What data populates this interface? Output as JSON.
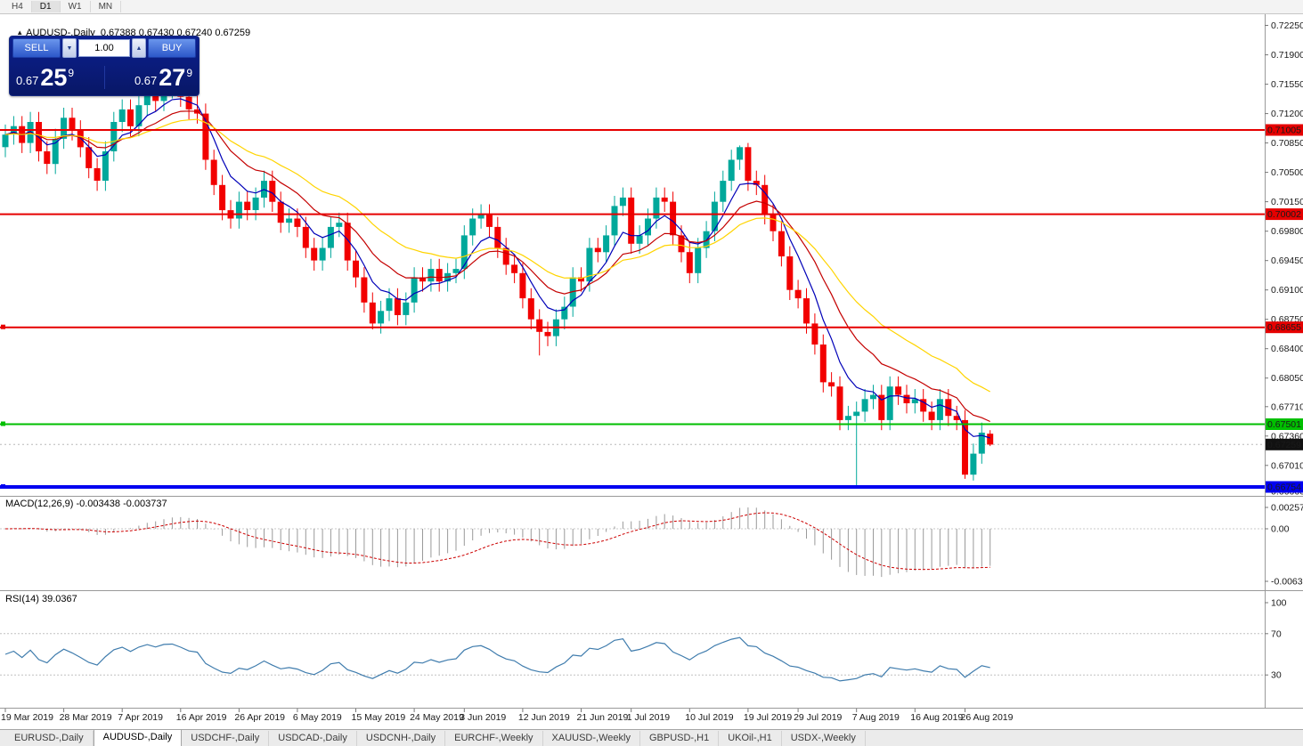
{
  "toolbar": {
    "timeframes": [
      "H4",
      "D1",
      "W1",
      "MN"
    ],
    "active": "D1"
  },
  "chart_header": {
    "marker": "▲",
    "title": "AUDUSD-,Daily  0.67388 0.67430 0.67240 0.67259"
  },
  "trade_panel": {
    "sell_label": "SELL",
    "buy_label": "BUY",
    "volume": "1.00",
    "icons": {
      "down": "▼",
      "up": "▲"
    },
    "sell_price": {
      "base": "0.67",
      "pips": "25",
      "sup": "9"
    },
    "buy_price": {
      "base": "0.67",
      "pips": "27",
      "sup": "9"
    }
  },
  "bottom_tabs": {
    "active_index": 1,
    "items": [
      "EURUSD-,Daily",
      "AUDUSD-,Daily",
      "USDCHF-,Daily",
      "USDCAD-,Daily",
      "USDCNH-,Daily",
      "EURCHF-,Weekly",
      "XAUUSD-,Weekly",
      "GBPUSD-,H1",
      "UKOil-,H1",
      "USDX-,Weekly"
    ]
  },
  "chart_data": {
    "type": "candlestick",
    "symbol": "AUDUSD",
    "timeframe": "Daily",
    "ohlc_display": {
      "open": 0.67388,
      "high": 0.6743,
      "low": 0.6724,
      "close": 0.67259
    },
    "bull_color": "#00a89b",
    "bear_color": "#f20000",
    "moving_averages": [
      {
        "period": 6,
        "color": "#0000b8"
      },
      {
        "period": 13,
        "color": "#c40000"
      },
      {
        "period": 24,
        "color": "#ffd400"
      }
    ],
    "levels": [
      {
        "label": "0.71005",
        "value": 0.71005,
        "color": "#e60000",
        "width": 2,
        "marker": false
      },
      {
        "label": "0.70002",
        "value": 0.70002,
        "color": "#e60000",
        "width": 2,
        "marker": false
      },
      {
        "label": "0.68655",
        "value": 0.68655,
        "color": "#e60000",
        "width": 2,
        "marker": true
      },
      {
        "label": "0.67501",
        "value": 0.67501,
        "color": "#00bf00",
        "width": 2,
        "marker": true
      },
      {
        "label": "0.66754",
        "value": 0.66754,
        "color": "#0000f0",
        "width": 4,
        "marker": true
      }
    ],
    "current_price": {
      "label": "0.67259",
      "value": 0.67259
    },
    "price_axis_labels": [
      "0.72250",
      "0.71900",
      "0.71550",
      "0.71200",
      "0.70850",
      "0.70500",
      "0.70150",
      "0.69800",
      "0.69450",
      "0.69100",
      "0.68750",
      "0.68400",
      "0.68050",
      "0.67710",
      "0.67360",
      "0.67010",
      "0.66660"
    ],
    "indicators": {
      "macd": {
        "title": "MACD(12,26,9) -0.003438 -0.003737",
        "values": [
          -0.003438,
          -0.003737
        ],
        "axis": [
          {
            "label": "0.002574",
            "value": 0.002574
          },
          {
            "label": "0.00",
            "value": 0
          },
          {
            "label": "-0.006326",
            "value": -0.006326
          }
        ]
      },
      "rsi": {
        "title": "RSI(14) 39.0367",
        "value": 39.0367,
        "axis": [
          {
            "label": "100",
            "value": 100
          },
          {
            "label": "70",
            "value": 70
          },
          {
            "label": "30",
            "value": 30
          }
        ]
      }
    },
    "x_axis": [
      {
        "label": "19 Mar 2019",
        "i": 0
      },
      {
        "label": "28 Mar 2019",
        "i": 7
      },
      {
        "label": "7 Apr 2019",
        "i": 14
      },
      {
        "label": "16 Apr 2019",
        "i": 21
      },
      {
        "label": "26 Apr 2019",
        "i": 28
      },
      {
        "label": "6 May 2019",
        "i": 35
      },
      {
        "label": "15 May 2019",
        "i": 42
      },
      {
        "label": "24 May 2019",
        "i": 49
      },
      {
        "label": "3 Jun 2019",
        "i": 55
      },
      {
        "label": "12 Jun 2019",
        "i": 62
      },
      {
        "label": "21 Jun 2019",
        "i": 69
      },
      {
        "label": "1 Jul 2019",
        "i": 75
      },
      {
        "label": "10 Jul 2019",
        "i": 82
      },
      {
        "label": "19 Jul 2019",
        "i": 89
      },
      {
        "label": "29 Jul 2019",
        "i": 95
      },
      {
        "label": "7 Aug 2019",
        "i": 102
      },
      {
        "label": "16 Aug 2019",
        "i": 109
      },
      {
        "label": "26 Aug 2019",
        "i": 115
      }
    ],
    "candles": [
      [
        0.708,
        0.7107,
        0.7068,
        0.7095
      ],
      [
        0.7095,
        0.7117,
        0.7083,
        0.7105
      ],
      [
        0.7105,
        0.7117,
        0.7073,
        0.7085
      ],
      [
        0.7085,
        0.7122,
        0.7073,
        0.711
      ],
      [
        0.711,
        0.7122,
        0.7063,
        0.7075
      ],
      [
        0.7075,
        0.7087,
        0.7048,
        0.706
      ],
      [
        0.706,
        0.7102,
        0.7048,
        0.709
      ],
      [
        0.709,
        0.7127,
        0.7078,
        0.7115
      ],
      [
        0.7115,
        0.7127,
        0.7088,
        0.71
      ],
      [
        0.71,
        0.7112,
        0.7068,
        0.708
      ],
      [
        0.708,
        0.7092,
        0.7043,
        0.7055
      ],
      [
        0.7055,
        0.7067,
        0.7028,
        0.704
      ],
      [
        0.704,
        0.7087,
        0.7028,
        0.7075
      ],
      [
        0.7075,
        0.7122,
        0.7063,
        0.711
      ],
      [
        0.711,
        0.7137,
        0.7098,
        0.7125
      ],
      [
        0.7125,
        0.7137,
        0.7093,
        0.7105
      ],
      [
        0.7105,
        0.7142,
        0.7093,
        0.713
      ],
      [
        0.713,
        0.7157,
        0.7118,
        0.7145
      ],
      [
        0.7145,
        0.7157,
        0.7123,
        0.7135
      ],
      [
        0.7135,
        0.7162,
        0.7123,
        0.715
      ],
      [
        0.715,
        0.716,
        0.7138,
        0.7152
      ],
      [
        0.7152,
        0.7158,
        0.7128,
        0.714
      ],
      [
        0.714,
        0.7152,
        0.7113,
        0.7125
      ],
      [
        0.7125,
        0.7158,
        0.7108,
        0.712
      ],
      [
        0.712,
        0.7132,
        0.7053,
        0.7065
      ],
      [
        0.7065,
        0.7077,
        0.7023,
        0.7035
      ],
      [
        0.7035,
        0.7047,
        0.6993,
        0.7005
      ],
      [
        0.7005,
        0.7017,
        0.6983,
        0.6995
      ],
      [
        0.6995,
        0.7027,
        0.6983,
        0.7015
      ],
      [
        0.7015,
        0.7027,
        0.6993,
        0.7005
      ],
      [
        0.7005,
        0.7032,
        0.6993,
        0.702
      ],
      [
        0.702,
        0.7052,
        0.7008,
        0.704
      ],
      [
        0.704,
        0.7052,
        0.7003,
        0.7015
      ],
      [
        0.7015,
        0.7027,
        0.6978,
        0.699
      ],
      [
        0.699,
        0.7007,
        0.6978,
        0.6995
      ],
      [
        0.6995,
        0.7007,
        0.6973,
        0.6985
      ],
      [
        0.6985,
        0.6997,
        0.6948,
        0.696
      ],
      [
        0.696,
        0.6972,
        0.6933,
        0.6945
      ],
      [
        0.6945,
        0.6972,
        0.6933,
        0.696
      ],
      [
        0.696,
        0.6997,
        0.6948,
        0.6985
      ],
      [
        0.6985,
        0.7002,
        0.6973,
        0.699
      ],
      [
        0.699,
        0.7002,
        0.6933,
        0.6945
      ],
      [
        0.6945,
        0.6957,
        0.6913,
        0.6925
      ],
      [
        0.6925,
        0.6937,
        0.6883,
        0.6895
      ],
      [
        0.6895,
        0.6907,
        0.6863,
        0.687
      ],
      [
        0.687,
        0.6897,
        0.6858,
        0.6885
      ],
      [
        0.6885,
        0.6912,
        0.6873,
        0.69
      ],
      [
        0.69,
        0.6912,
        0.6868,
        0.688
      ],
      [
        0.688,
        0.6907,
        0.6868,
        0.6895
      ],
      [
        0.6895,
        0.6937,
        0.6883,
        0.6925
      ],
      [
        0.6925,
        0.6937,
        0.6908,
        0.692
      ],
      [
        0.692,
        0.6947,
        0.6908,
        0.6935
      ],
      [
        0.6935,
        0.6947,
        0.6908,
        0.692
      ],
      [
        0.692,
        0.6942,
        0.6908,
        0.693
      ],
      [
        0.693,
        0.6947,
        0.6918,
        0.6935
      ],
      [
        0.6935,
        0.6987,
        0.6923,
        0.6975
      ],
      [
        0.6975,
        0.7007,
        0.6963,
        0.6995
      ],
      [
        0.6995,
        0.7012,
        0.6983,
        0.7
      ],
      [
        0.7,
        0.7012,
        0.6973,
        0.6985
      ],
      [
        0.6985,
        0.6997,
        0.6948,
        0.696
      ],
      [
        0.696,
        0.6972,
        0.6928,
        0.694
      ],
      [
        0.694,
        0.6952,
        0.6918,
        0.693
      ],
      [
        0.693,
        0.6942,
        0.6888,
        0.69
      ],
      [
        0.69,
        0.6912,
        0.6863,
        0.6875
      ],
      [
        0.6875,
        0.6887,
        0.6832,
        0.686
      ],
      [
        0.686,
        0.6872,
        0.6843,
        0.6855
      ],
      [
        0.6855,
        0.6887,
        0.6843,
        0.6875
      ],
      [
        0.6875,
        0.6902,
        0.6863,
        0.689
      ],
      [
        0.689,
        0.6937,
        0.6878,
        0.6925
      ],
      [
        0.6925,
        0.6937,
        0.6908,
        0.692
      ],
      [
        0.692,
        0.6972,
        0.6908,
        0.696
      ],
      [
        0.696,
        0.6972,
        0.6943,
        0.6955
      ],
      [
        0.6955,
        0.6987,
        0.6943,
        0.6975
      ],
      [
        0.6975,
        0.7022,
        0.6963,
        0.701
      ],
      [
        0.701,
        0.7032,
        0.6998,
        0.702
      ],
      [
        0.702,
        0.7032,
        0.6953,
        0.6965
      ],
      [
        0.6965,
        0.6987,
        0.6953,
        0.6975
      ],
      [
        0.6975,
        0.7007,
        0.6963,
        0.6995
      ],
      [
        0.6995,
        0.7032,
        0.6983,
        0.702
      ],
      [
        0.702,
        0.7032,
        0.7003,
        0.7015
      ],
      [
        0.7015,
        0.7027,
        0.6963,
        0.6975
      ],
      [
        0.6975,
        0.6987,
        0.6943,
        0.6955
      ],
      [
        0.6955,
        0.6967,
        0.6918,
        0.693
      ],
      [
        0.693,
        0.6972,
        0.6918,
        0.696
      ],
      [
        0.696,
        0.6992,
        0.6948,
        0.698
      ],
      [
        0.698,
        0.7027,
        0.6968,
        0.7015
      ],
      [
        0.7015,
        0.7052,
        0.7003,
        0.704
      ],
      [
        0.704,
        0.7077,
        0.7028,
        0.7065
      ],
      [
        0.7065,
        0.7082,
        0.7053,
        0.708
      ],
      [
        0.708,
        0.7085,
        0.7028,
        0.704
      ],
      [
        0.704,
        0.7052,
        0.7023,
        0.7035
      ],
      [
        0.7035,
        0.7047,
        0.6988,
        0.7
      ],
      [
        0.7,
        0.7012,
        0.6968,
        0.698
      ],
      [
        0.698,
        0.6992,
        0.6938,
        0.695
      ],
      [
        0.695,
        0.6962,
        0.6898,
        0.691
      ],
      [
        0.691,
        0.6922,
        0.6888,
        0.69
      ],
      [
        0.69,
        0.6912,
        0.6858,
        0.687
      ],
      [
        0.687,
        0.6882,
        0.6833,
        0.6845
      ],
      [
        0.6845,
        0.6857,
        0.6788,
        0.68
      ],
      [
        0.68,
        0.6812,
        0.6783,
        0.6795
      ],
      [
        0.6795,
        0.6807,
        0.6743,
        0.6755
      ],
      [
        0.6755,
        0.6772,
        0.6743,
        0.676
      ],
      [
        0.676,
        0.6777,
        0.6677,
        0.6765
      ],
      [
        0.6765,
        0.6792,
        0.6753,
        0.678
      ],
      [
        0.678,
        0.6797,
        0.6768,
        0.6785
      ],
      [
        0.6785,
        0.6797,
        0.6743,
        0.6755
      ],
      [
        0.6755,
        0.6807,
        0.6743,
        0.6795
      ],
      [
        0.6795,
        0.6807,
        0.6773,
        0.6785
      ],
      [
        0.6785,
        0.6797,
        0.6763,
        0.6775
      ],
      [
        0.6775,
        0.6792,
        0.6763,
        0.678
      ],
      [
        0.678,
        0.6792,
        0.6753,
        0.6765
      ],
      [
        0.6765,
        0.6777,
        0.6743,
        0.6755
      ],
      [
        0.6755,
        0.6792,
        0.6743,
        0.678
      ],
      [
        0.678,
        0.6792,
        0.6748,
        0.676
      ],
      [
        0.676,
        0.6772,
        0.6743,
        0.6755
      ],
      [
        0.6755,
        0.6767,
        0.6685,
        0.669
      ],
      [
        0.669,
        0.6727,
        0.6683,
        0.6715
      ],
      [
        0.6715,
        0.6752,
        0.6703,
        0.674
      ],
      [
        0.67388,
        0.6743,
        0.6724,
        0.67259
      ]
    ]
  }
}
